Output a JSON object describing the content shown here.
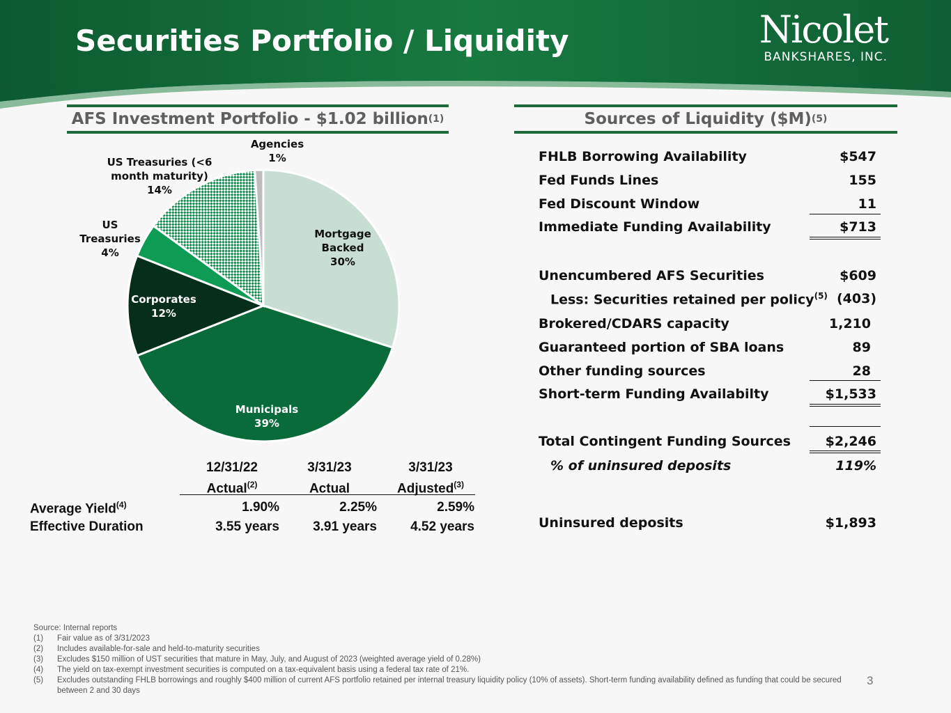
{
  "slide": {
    "title": "Securities Portfolio / Liquidity",
    "page_number": "3"
  },
  "logo": {
    "name": "Nicolet",
    "sub": "BANKSHARES, INC."
  },
  "colors": {
    "header_green": "#0f5e33",
    "accent_green": "#1d6b3a"
  },
  "left_section": {
    "title": "AFS Investment Portfolio - $1.02 billion",
    "title_note": "(1)"
  },
  "right_section": {
    "title": "Sources of Liquidity ($M)",
    "title_note": "(5)"
  },
  "chart_data": {
    "type": "pie",
    "title": "AFS Investment Portfolio - $1.02 billion",
    "slices": [
      {
        "label": "Mortgage Backed",
        "value": 30,
        "display": "30%",
        "color": "#c8ded3",
        "pattern": false,
        "label_lines": [
          "Mortgage",
          "Backed",
          "30%"
        ],
        "label_color": "#111111"
      },
      {
        "label": "Municipals",
        "value": 39,
        "display": "39%",
        "color": "#0a6b3a",
        "pattern": false,
        "label_lines": [
          "Municipals",
          "39%"
        ],
        "label_color": "#ffffff"
      },
      {
        "label": "Corporates",
        "value": 12,
        "display": "12%",
        "color": "#062e1a",
        "pattern": false,
        "label_lines": [
          "Corporates",
          "12%"
        ],
        "label_color": "#ffffff"
      },
      {
        "label": "US Treasuries",
        "value": 4,
        "display": "4%",
        "color": "#0e9c54",
        "pattern": false,
        "label_lines": [
          "US",
          "Treasuries",
          "4%"
        ],
        "label_color": "#111111"
      },
      {
        "label": "US Treasuries (<6 month maturity)",
        "value": 14,
        "display": "14%",
        "color": "#0f8a4a",
        "pattern": true,
        "label_lines": [
          "US Treasuries (<6",
          "month maturity)",
          "14%"
        ],
        "label_color": "#111111"
      },
      {
        "label": "Agencies",
        "value": 1,
        "display": "1%",
        "color": "#bdbdbd",
        "pattern": false,
        "label_lines": [
          "Agencies",
          "1%"
        ],
        "label_color": "#111111"
      }
    ]
  },
  "yield_table": {
    "headers": [
      {
        "line1": "12/31/22",
        "line2": "Actual",
        "note": "(2)"
      },
      {
        "line1": "3/31/23",
        "line2": "Actual",
        "note": ""
      },
      {
        "line1": "3/31/23",
        "line2": "Adjusted",
        "note": "(3)"
      }
    ],
    "rows": [
      {
        "label": "Average Yield",
        "note": "(4)",
        "values": [
          "1.90%",
          "2.25%",
          "2.59%"
        ]
      },
      {
        "label": "Effective Duration",
        "note": "",
        "values": [
          "3.55 years",
          "3.91 years",
          "4.52 years"
        ]
      }
    ]
  },
  "liquidity": {
    "rows": [
      {
        "label": "FHLB Borrowing Availability",
        "value": "$547"
      },
      {
        "label": "Fed Funds Lines",
        "value": "155"
      },
      {
        "label": "Fed Discount Window",
        "value": "11"
      },
      {
        "label": "Immediate Funding Availability",
        "value": "$713"
      },
      {
        "label": "Unencumbered AFS Securities",
        "value": "$609"
      },
      {
        "label": "Less: Securities retained per policy",
        "note": "(5)",
        "value": "(403)"
      },
      {
        "label": "Brokered/CDARS capacity",
        "value": "1,210"
      },
      {
        "label": "Guaranteed portion of SBA loans",
        "value": "89"
      },
      {
        "label": "Other funding sources",
        "value": "28"
      },
      {
        "label": "Short-term Funding Availabilty",
        "value": "$1,533"
      },
      {
        "label": "Total Contingent Funding Sources",
        "value": "$2,246"
      },
      {
        "label": "% of uninsured deposits",
        "value": "119%"
      },
      {
        "label": "Uninsured deposits",
        "value": "$1,893"
      }
    ]
  },
  "footnotes": {
    "source": "Source: Internal reports",
    "items": [
      {
        "num": "(1)",
        "text": "Fair value as of 3/31/2023"
      },
      {
        "num": "(2)",
        "text": "Includes  available-for-sale and held-to-maturity securities"
      },
      {
        "num": "(3)",
        "text": "Excludes $150 million of UST securities that mature in May, July, and August of 2023 (weighted average yield of 0.28%)"
      },
      {
        "num": "(4)",
        "text": "The yield on tax-exempt investment securities is computed on a tax-equivalent basis using a federal tax rate of 21%."
      },
      {
        "num": "(5)",
        "text": "Excludes outstanding FHLB borrowings and roughly $400 million of current AFS portfolio retained per internal treasury liquidity policy (10% of assets). Short-term funding availability defined as funding that could be secured between 2 and 30 days"
      }
    ]
  }
}
